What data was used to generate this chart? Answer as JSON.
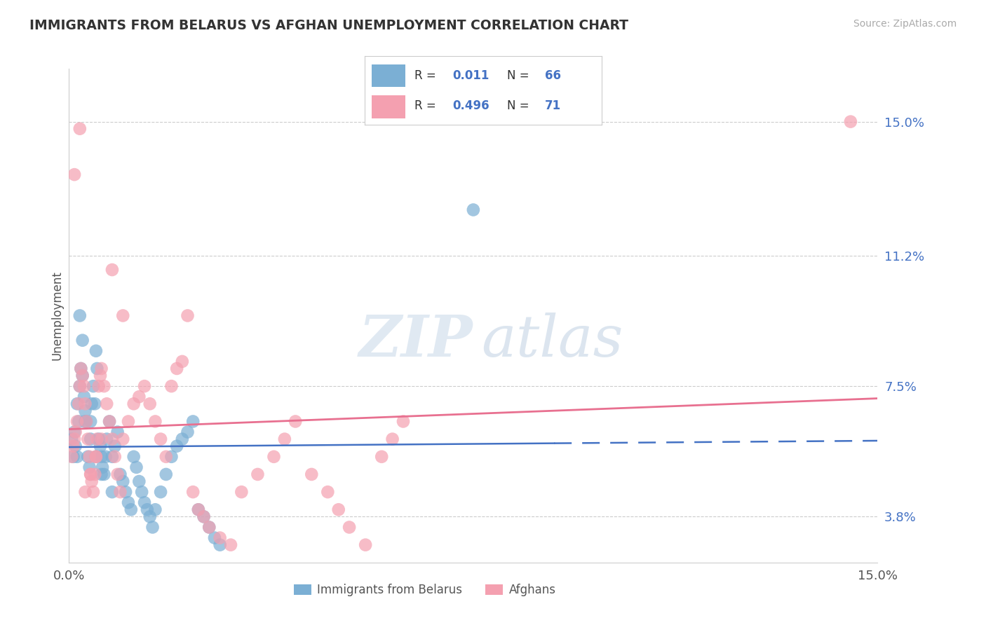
{
  "title": "IMMIGRANTS FROM BELARUS VS AFGHAN UNEMPLOYMENT CORRELATION CHART",
  "source": "Source: ZipAtlas.com",
  "ylabel": "Unemployment",
  "yticks": [
    3.8,
    7.5,
    11.2,
    15.0
  ],
  "xlim": [
    0.0,
    15.0
  ],
  "ylim": [
    2.5,
    16.5
  ],
  "blue_R": "0.011",
  "blue_N": 66,
  "pink_R": "0.496",
  "pink_N": 71,
  "blue_color": "#7bafd4",
  "pink_color": "#f4a0b0",
  "blue_line_color": "#4472c4",
  "pink_line_color": "#e87090",
  "blue_scatter_x": [
    0.05,
    0.08,
    0.1,
    0.12,
    0.15,
    0.18,
    0.2,
    0.22,
    0.25,
    0.28,
    0.3,
    0.32,
    0.35,
    0.38,
    0.4,
    0.42,
    0.45,
    0.48,
    0.5,
    0.52,
    0.55,
    0.58,
    0.6,
    0.62,
    0.65,
    0.68,
    0.7,
    0.75,
    0.8,
    0.85,
    0.9,
    0.95,
    1.0,
    1.05,
    1.1,
    1.15,
    1.2,
    1.25,
    1.3,
    1.35,
    1.4,
    1.45,
    1.5,
    1.55,
    1.6,
    1.7,
    1.8,
    1.9,
    2.0,
    2.1,
    2.2,
    2.3,
    2.4,
    2.5,
    2.6,
    2.7,
    2.8,
    0.15,
    0.2,
    0.25,
    0.3,
    0.4,
    0.5,
    0.6,
    0.8,
    7.5
  ],
  "blue_scatter_y": [
    6.0,
    5.5,
    6.2,
    5.8,
    7.0,
    6.5,
    7.5,
    8.0,
    7.8,
    7.2,
    6.8,
    6.5,
    5.5,
    5.2,
    6.5,
    7.0,
    7.5,
    7.0,
    8.5,
    8.0,
    6.0,
    5.8,
    5.5,
    5.2,
    5.0,
    5.5,
    6.0,
    6.5,
    5.5,
    5.8,
    6.2,
    5.0,
    4.8,
    4.5,
    4.2,
    4.0,
    5.5,
    5.2,
    4.8,
    4.5,
    4.2,
    4.0,
    3.8,
    3.5,
    4.0,
    4.5,
    5.0,
    5.5,
    5.8,
    6.0,
    6.2,
    6.5,
    4.0,
    3.8,
    3.5,
    3.2,
    3.0,
    5.5,
    9.5,
    8.8,
    6.5,
    6.0,
    5.5,
    5.0,
    4.5,
    12.5
  ],
  "pink_scatter_x": [
    0.05,
    0.08,
    0.1,
    0.12,
    0.15,
    0.18,
    0.2,
    0.22,
    0.25,
    0.28,
    0.3,
    0.32,
    0.35,
    0.38,
    0.4,
    0.42,
    0.45,
    0.48,
    0.5,
    0.52,
    0.55,
    0.58,
    0.6,
    0.65,
    0.7,
    0.75,
    0.8,
    0.85,
    0.9,
    0.95,
    1.0,
    1.1,
    1.2,
    1.3,
    1.4,
    1.5,
    1.6,
    1.7,
    1.8,
    1.9,
    2.0,
    2.1,
    2.2,
    2.3,
    2.4,
    2.5,
    2.6,
    2.8,
    3.0,
    3.2,
    3.5,
    3.8,
    4.0,
    4.2,
    4.5,
    4.8,
    5.0,
    5.2,
    5.5,
    5.8,
    6.0,
    6.2,
    0.1,
    0.2,
    0.3,
    0.4,
    0.5,
    0.6,
    0.8,
    1.0,
    14.5
  ],
  "pink_scatter_y": [
    5.5,
    5.8,
    6.0,
    6.2,
    6.5,
    7.0,
    7.5,
    8.0,
    7.8,
    7.5,
    7.0,
    6.5,
    6.0,
    5.5,
    5.0,
    4.8,
    4.5,
    5.0,
    5.5,
    6.0,
    7.5,
    7.8,
    8.0,
    7.5,
    7.0,
    6.5,
    6.0,
    5.5,
    5.0,
    4.5,
    6.0,
    6.5,
    7.0,
    7.2,
    7.5,
    7.0,
    6.5,
    6.0,
    5.5,
    7.5,
    8.0,
    8.2,
    9.5,
    4.5,
    4.0,
    3.8,
    3.5,
    3.2,
    3.0,
    4.5,
    5.0,
    5.5,
    6.0,
    6.5,
    5.0,
    4.5,
    4.0,
    3.5,
    3.0,
    5.5,
    6.0,
    6.5,
    13.5,
    14.8,
    4.5,
    5.0,
    5.5,
    6.0,
    10.8,
    9.5,
    15.0
  ]
}
